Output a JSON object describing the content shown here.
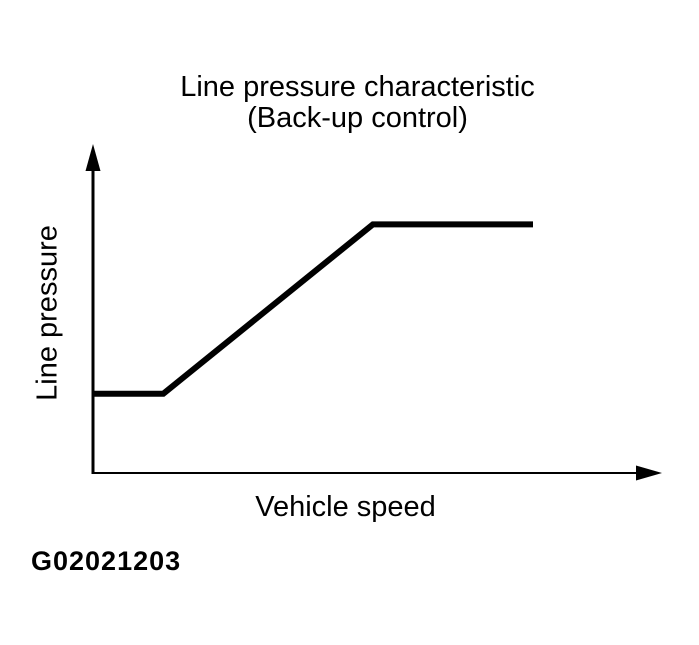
{
  "figure": {
    "title_line1": "Line pressure characteristic",
    "title_line2": "(Back-up control)",
    "figure_id": "G02021203"
  },
  "chart_data": {
    "type": "line",
    "title": "Line pressure characteristic (Back-up control)",
    "xlabel": "Vehicle speed",
    "ylabel": "Line pressure",
    "grid": false,
    "legend": false,
    "axis_style": "qualitative axes with arrowheads, no tick marks or numeric labels",
    "xlim": [
      0,
      1
    ],
    "ylim": [
      0,
      1
    ],
    "line_color": "#000000",
    "line_width": 6,
    "series": [
      {
        "name": "line-pressure-vs-vehicle-speed",
        "x": [
          0.0,
          0.125,
          0.498,
          0.783
        ],
        "y": [
          0.26,
          0.26,
          0.815,
          0.815
        ],
        "shape_description": "constant low pressure, then linear rise, then constant high pressure"
      }
    ]
  }
}
